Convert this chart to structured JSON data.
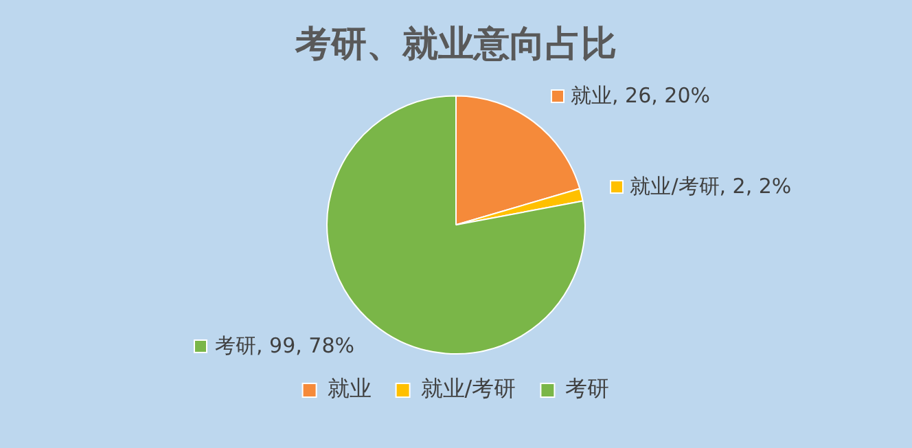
{
  "chart_data": {
    "type": "pie",
    "title": "考研、就业意向占比",
    "categories": [
      "就业",
      "就业/考研",
      "考研"
    ],
    "values": [
      26,
      2,
      99
    ],
    "colors": [
      "#f58a3a",
      "#ffc000",
      "#7ab648"
    ],
    "value_labels": [
      "就业, 26, 20%",
      "就业/考研, 2, 2%",
      "考研, 99, 78%"
    ],
    "legend": "bottom"
  }
}
